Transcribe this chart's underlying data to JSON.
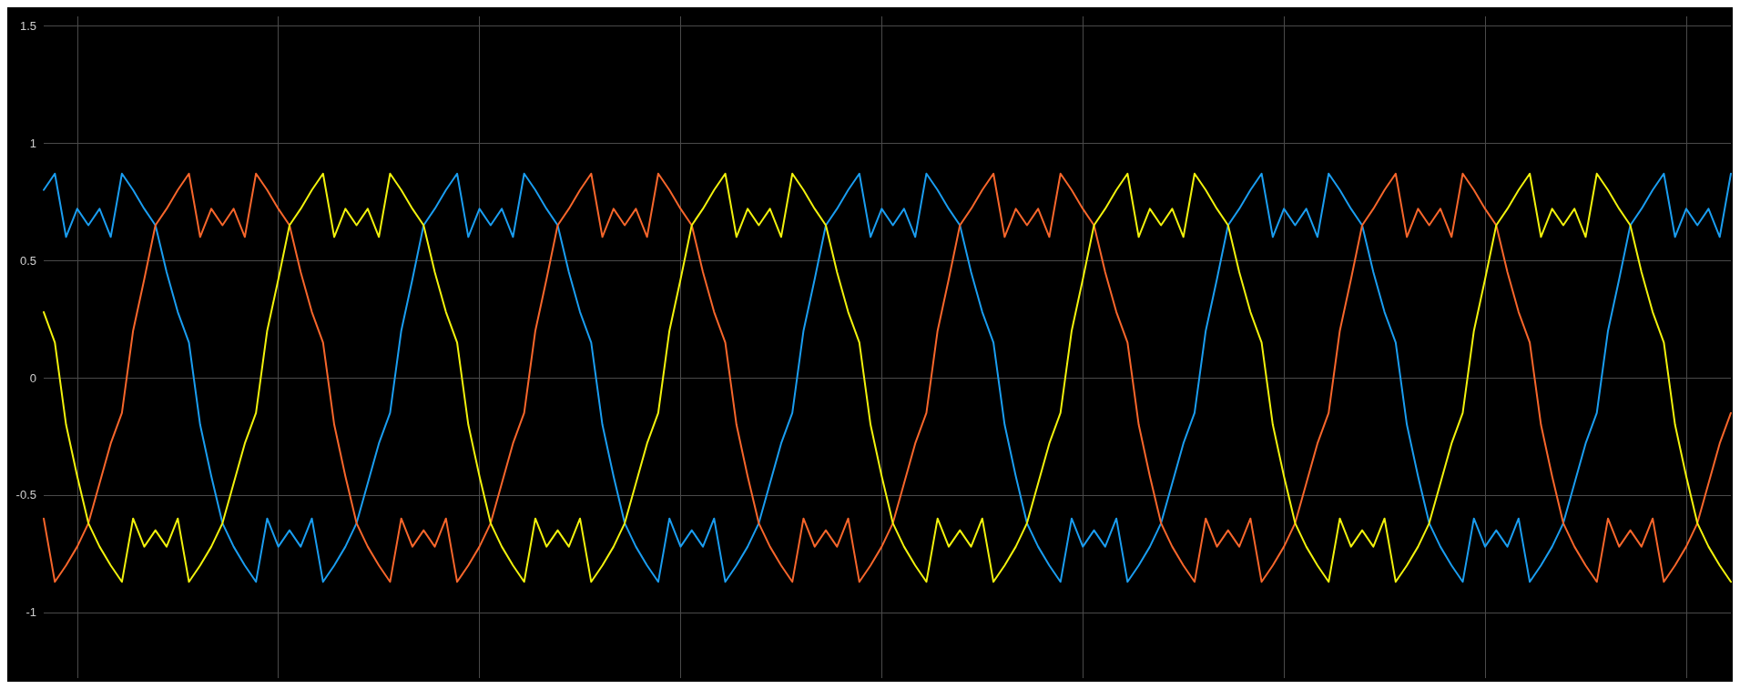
{
  "chart_data": {
    "type": "line",
    "tick_labels": "y",
    "grid": true,
    "marker": "none",
    "line_style": "solid",
    "ylim": [
      -1.28,
      1.54
    ],
    "yticks": [
      -1,
      -0.5,
      0,
      0.5,
      1,
      1.5
    ],
    "categories": [
      null,
      null,
      null,
      null,
      null,
      null,
      null,
      null,
      null,
      null,
      null,
      null,
      null,
      null,
      null,
      null,
      null,
      null,
      null,
      null,
      null,
      null,
      null,
      null,
      null,
      null,
      null,
      null,
      null,
      null,
      null,
      null,
      null,
      null,
      null,
      null,
      null,
      null,
      null,
      null,
      null,
      null,
      null,
      null,
      null,
      null,
      null,
      null,
      null,
      null,
      null,
      null,
      null,
      null,
      null,
      null,
      null,
      null,
      null,
      null,
      null,
      null,
      null,
      null,
      null,
      null,
      null,
      null,
      null,
      null,
      null,
      null,
      null,
      null,
      null,
      null,
      null,
      null,
      null,
      null,
      null,
      null,
      null,
      null,
      null,
      null,
      null,
      null,
      null,
      null,
      null,
      null,
      null,
      null,
      null,
      null,
      null,
      null,
      null,
      null,
      null,
      null,
      null,
      null,
      null,
      null,
      null,
      null,
      null,
      null,
      null,
      null,
      null,
      null,
      null,
      null,
      null,
      null,
      null,
      null,
      null,
      null,
      null,
      null,
      null,
      null,
      null,
      null,
      null,
      null,
      null,
      null,
      null,
      null,
      null,
      null,
      null,
      null,
      null,
      null,
      null,
      null,
      null,
      null,
      null,
      null,
      null,
      null,
      null,
      null,
      null,
      null
    ],
    "series": [
      {
        "color": "#1a9df0",
        "values": [
          0.8,
          0.87,
          0.6,
          0.72,
          0.65,
          0.72,
          0.6,
          0.87,
          0.8,
          0.72,
          0.65,
          0.45,
          0.28,
          0.15,
          -0.2,
          -0.42,
          -0.62,
          -0.72,
          -0.8,
          -0.87,
          -0.6,
          -0.72,
          -0.65,
          -0.72,
          -0.6,
          -0.87,
          -0.8,
          -0.72,
          -0.62,
          -0.45,
          -0.28,
          -0.15,
          0.2,
          0.42,
          0.65,
          0.72,
          0.8,
          0.87,
          0.6,
          0.72,
          0.65,
          0.72,
          0.6,
          0.87,
          0.8,
          0.72,
          0.65,
          0.45,
          0.28,
          0.15,
          -0.2,
          -0.42,
          -0.62,
          -0.72,
          -0.8,
          -0.87,
          -0.6,
          -0.72,
          -0.65,
          -0.72,
          -0.6,
          -0.87,
          -0.8,
          -0.72,
          -0.62,
          -0.45,
          -0.28,
          -0.15,
          0.2,
          0.42,
          0.65,
          0.72,
          0.8,
          0.87,
          0.6,
          0.72,
          0.65,
          0.72,
          0.6,
          0.87,
          0.8,
          0.72,
          0.65,
          0.45,
          0.28,
          0.15,
          -0.2,
          -0.42,
          -0.62,
          -0.72,
          -0.8,
          -0.87,
          -0.6,
          -0.72,
          -0.65,
          -0.72,
          -0.6,
          -0.87,
          -0.8,
          -0.72,
          -0.62,
          -0.45,
          -0.28,
          -0.15,
          0.2,
          0.42,
          0.65,
          0.72,
          0.8,
          0.87,
          0.6,
          0.72,
          0.65,
          0.72,
          0.6,
          0.87,
          0.8,
          0.72,
          0.65,
          0.45,
          0.28,
          0.15,
          -0.2,
          -0.42,
          -0.62,
          -0.72,
          -0.8,
          -0.87,
          -0.6,
          -0.72,
          -0.65,
          -0.72,
          -0.6,
          -0.87,
          -0.8,
          -0.72,
          -0.62,
          -0.45,
          -0.28,
          -0.15,
          0.2,
          0.42,
          0.65,
          0.72,
          0.8,
          0.87,
          0.6,
          0.72,
          0.65,
          0.72,
          0.6,
          0.87
        ]
      },
      {
        "color": "#f7662b",
        "values": [
          -0.6,
          -0.87,
          -0.8,
          -0.72,
          -0.62,
          -0.45,
          -0.28,
          -0.15,
          0.2,
          0.42,
          0.65,
          0.72,
          0.8,
          0.87,
          0.6,
          0.72,
          0.65,
          0.72,
          0.6,
          0.87,
          0.8,
          0.72,
          0.65,
          0.45,
          0.28,
          0.15,
          -0.2,
          -0.42,
          -0.62,
          -0.72,
          -0.8,
          -0.87,
          -0.6,
          -0.72,
          -0.65,
          -0.72,
          -0.6,
          -0.87,
          -0.8,
          -0.72,
          -0.62,
          -0.45,
          -0.28,
          -0.15,
          0.2,
          0.42,
          0.65,
          0.72,
          0.8,
          0.87,
          0.6,
          0.72,
          0.65,
          0.72,
          0.6,
          0.87,
          0.8,
          0.72,
          0.65,
          0.45,
          0.28,
          0.15,
          -0.2,
          -0.42,
          -0.62,
          -0.72,
          -0.8,
          -0.87,
          -0.6,
          -0.72,
          -0.65,
          -0.72,
          -0.6,
          -0.87,
          -0.8,
          -0.72,
          -0.62,
          -0.45,
          -0.28,
          -0.15,
          0.2,
          0.42,
          0.65,
          0.72,
          0.8,
          0.87,
          0.6,
          0.72,
          0.65,
          0.72,
          0.6,
          0.87,
          0.8,
          0.72,
          0.65,
          0.45,
          0.28,
          0.15,
          -0.2,
          -0.42,
          -0.62,
          -0.72,
          -0.8,
          -0.87,
          -0.6,
          -0.72,
          -0.65,
          -0.72,
          -0.6,
          -0.87,
          -0.8,
          -0.72,
          -0.62,
          -0.45,
          -0.28,
          -0.15,
          0.2,
          0.42,
          0.65,
          0.72,
          0.8,
          0.87,
          0.6,
          0.72,
          0.65,
          0.72,
          0.6,
          0.87,
          0.8,
          0.72,
          0.65,
          0.45,
          0.28,
          0.15,
          -0.2,
          -0.42,
          -0.62,
          -0.72,
          -0.8,
          -0.87,
          -0.6,
          -0.72,
          -0.65,
          -0.72,
          -0.6,
          -0.87,
          -0.8,
          -0.72,
          -0.62,
          -0.45,
          -0.28,
          -0.15
        ]
      },
      {
        "color": "#f2f20c",
        "values": [
          0.28,
          0.15,
          -0.2,
          -0.42,
          -0.62,
          -0.72,
          -0.8,
          -0.87,
          -0.6,
          -0.72,
          -0.65,
          -0.72,
          -0.6,
          -0.87,
          -0.8,
          -0.72,
          -0.62,
          -0.45,
          -0.28,
          -0.15,
          0.2,
          0.42,
          0.65,
          0.72,
          0.8,
          0.87,
          0.6,
          0.72,
          0.65,
          0.72,
          0.6,
          0.87,
          0.8,
          0.72,
          0.65,
          0.45,
          0.28,
          0.15,
          -0.2,
          -0.42,
          -0.62,
          -0.72,
          -0.8,
          -0.87,
          -0.6,
          -0.72,
          -0.65,
          -0.72,
          -0.6,
          -0.87,
          -0.8,
          -0.72,
          -0.62,
          -0.45,
          -0.28,
          -0.15,
          0.2,
          0.42,
          0.65,
          0.72,
          0.8,
          0.87,
          0.6,
          0.72,
          0.65,
          0.72,
          0.6,
          0.87,
          0.8,
          0.72,
          0.65,
          0.45,
          0.28,
          0.15,
          -0.2,
          -0.42,
          -0.62,
          -0.72,
          -0.8,
          -0.87,
          -0.6,
          -0.72,
          -0.65,
          -0.72,
          -0.6,
          -0.87,
          -0.8,
          -0.72,
          -0.62,
          -0.45,
          -0.28,
          -0.15,
          0.2,
          0.42,
          0.65,
          0.72,
          0.8,
          0.87,
          0.6,
          0.72,
          0.65,
          0.72,
          0.6,
          0.87,
          0.8,
          0.72,
          0.65,
          0.45,
          0.28,
          0.15,
          -0.2,
          -0.42,
          -0.62,
          -0.72,
          -0.8,
          -0.87,
          -0.6,
          -0.72,
          -0.65,
          -0.72,
          -0.6,
          -0.87,
          -0.8,
          -0.72,
          -0.62,
          -0.45,
          -0.28,
          -0.15,
          0.2,
          0.42,
          0.65,
          0.72,
          0.8,
          0.87,
          0.6,
          0.72,
          0.65,
          0.72,
          0.6,
          0.87,
          0.8,
          0.72,
          0.65,
          0.45,
          0.28,
          0.15,
          -0.2,
          -0.42,
          -0.62,
          -0.72,
          -0.8,
          -0.87
        ]
      }
    ]
  }
}
